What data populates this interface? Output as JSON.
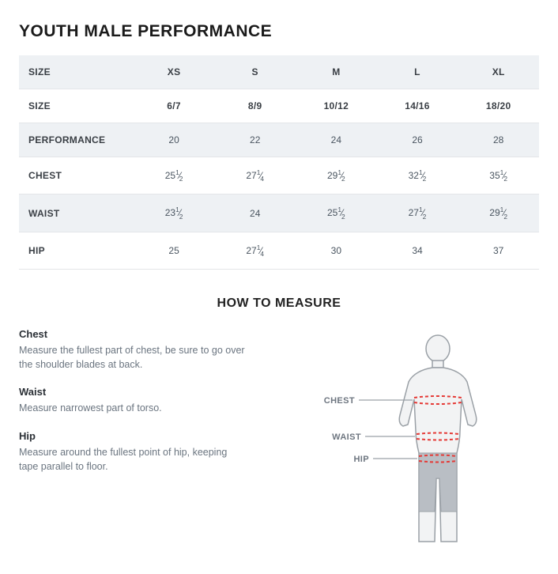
{
  "title": "YOUTH MALE PERFORMANCE",
  "table": {
    "columns": [
      "SIZE",
      "XS",
      "S",
      "M",
      "L",
      "XL"
    ],
    "rows": [
      {
        "label": "SIZE",
        "values": [
          "6/7",
          "8/9",
          "10/12",
          "14/16",
          "18/20"
        ],
        "header": true
      },
      {
        "label": "PERFORMANCE",
        "values": [
          "20",
          "22",
          "24",
          "26",
          "28"
        ]
      },
      {
        "label": "CHEST",
        "values": [
          "25 1/2",
          "27 1/4",
          "29 1/2",
          "32 1/2",
          "35 1/2"
        ]
      },
      {
        "label": "WAIST",
        "values": [
          "23 1/2",
          "24",
          "25 1/2",
          "27 1/2",
          "29 1/2"
        ]
      },
      {
        "label": "HIP",
        "values": [
          "25",
          "27 1/4",
          "30",
          "34",
          "37"
        ]
      }
    ],
    "colors": {
      "zebra_even": "#eef1f4",
      "zebra_odd": "#ffffff",
      "border": "#e3e5e8",
      "text": "#4a5560",
      "label_text": "#3a3f45"
    },
    "col_widths_pct": [
      22,
      15.6,
      15.6,
      15.6,
      15.6,
      15.6
    ],
    "font_size_pt": 12
  },
  "howto": {
    "title": "HOW TO MEASURE",
    "sections": [
      {
        "label": "Chest",
        "text": "Measure the fullest part of chest, be sure to go over the shoulder blades at back."
      },
      {
        "label": "Waist",
        "text": "Measure narrowest part of torso."
      },
      {
        "label": "Hip",
        "text": "Measure around the fullest point of hip, keeping tape parallel to floor."
      }
    ],
    "figure": {
      "labels": {
        "chest": "CHEST",
        "waist": "WAIST",
        "hip": "HIP"
      },
      "colors": {
        "body_fill": "#f2f3f4",
        "body_stroke": "#9aa0a6",
        "shorts_fill": "#b9bec4",
        "tape_color": "#e53935",
        "label_text": "#6e7680",
        "leader_line": "#9aa0a6"
      }
    }
  }
}
